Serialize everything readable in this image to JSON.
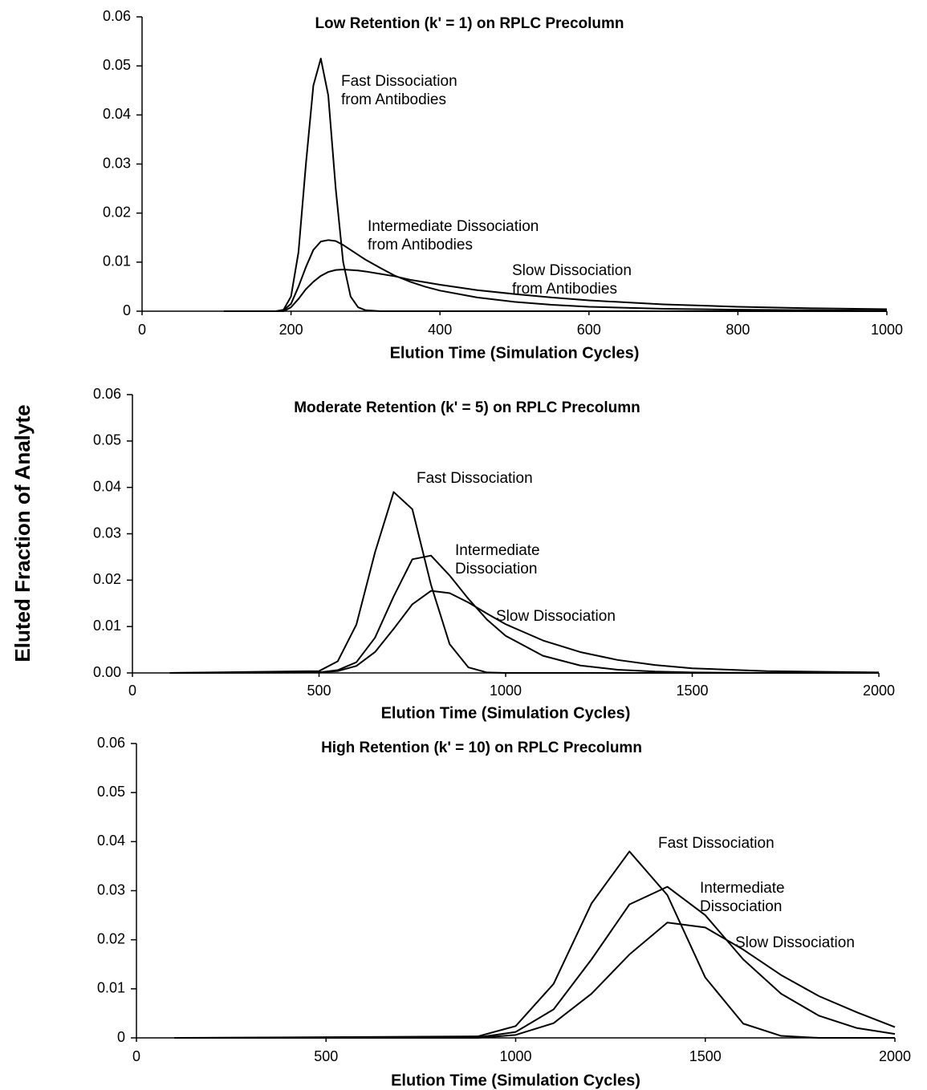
{
  "chart_data": [
    {
      "type": "line",
      "title": "Low Retention (k' = 1) on RPLC Precolumn",
      "xlabel": "Elution Time (Simulation Cycles)",
      "xlim": [
        0,
        1000
      ],
      "xticks": [
        0,
        200,
        400,
        600,
        800,
        1000
      ],
      "ylim": [
        0,
        0.06
      ],
      "yticks": [
        0,
        0.01,
        0.02,
        0.03,
        0.04,
        0.05,
        0.06
      ],
      "x": [
        110,
        180,
        190,
        200,
        210,
        220,
        230,
        240,
        250,
        260,
        270,
        280,
        290,
        300,
        320,
        340,
        360,
        380,
        400,
        450,
        500,
        550,
        600,
        700,
        800,
        900,
        1000
      ],
      "series": [
        {
          "label": [
            "Fast Dissociation",
            "from Antibodies"
          ],
          "color": "#000000",
          "values": [
            0,
            0,
            0.0003,
            0.003,
            0.012,
            0.03,
            0.046,
            0.0515,
            0.044,
            0.025,
            0.01,
            0.003,
            0.0008,
            0.0002,
            0,
            0,
            0,
            0,
            0,
            0,
            0,
            0,
            0,
            0,
            0,
            0,
            0
          ]
        },
        {
          "label": [
            "Intermediate Dissociation",
            "from Antibodies"
          ],
          "color": "#000000",
          "values": [
            0,
            0,
            0.0002,
            0.0015,
            0.005,
            0.009,
            0.0125,
            0.0142,
            0.0145,
            0.0143,
            0.0135,
            0.0125,
            0.0115,
            0.0105,
            0.0088,
            0.0072,
            0.006,
            0.005,
            0.0042,
            0.0028,
            0.0019,
            0.0013,
            0.0009,
            0.0005,
            0.0003,
            0.0002,
            0.0001
          ]
        },
        {
          "label": [
            "Slow Dissociation",
            "from Antibodies"
          ],
          "color": "#000000",
          "values": [
            0,
            0,
            0,
            0.0008,
            0.0025,
            0.0045,
            0.006,
            0.0072,
            0.008,
            0.0084,
            0.0085,
            0.0084,
            0.0083,
            0.0081,
            0.0076,
            0.0071,
            0.0064,
            0.0059,
            0.0054,
            0.0043,
            0.0035,
            0.0028,
            0.0022,
            0.0014,
            0.0009,
            0.0006,
            0.0004
          ]
        }
      ]
    },
    {
      "type": "line",
      "title": "Moderate Retention (k' = 5) on RPLC Precolumn",
      "xlabel": "Elution Time (Simulation Cycles)",
      "ylabel": "Eluted Fraction of Analyte",
      "xlim": [
        0,
        2000
      ],
      "xticks": [
        0,
        500,
        1000,
        1500,
        2000
      ],
      "ylim": [
        0,
        0.06
      ],
      "yticks": [
        {
          "value": 0,
          "label": "0.00"
        },
        {
          "value": 0.01,
          "label": "0.01"
        },
        {
          "value": 0.02,
          "label": "0.02"
        },
        {
          "value": 0.03,
          "label": "0.03"
        },
        {
          "value": 0.04,
          "label": "0.04"
        },
        {
          "value": 0.05,
          "label": "0.05"
        },
        {
          "value": 0.06,
          "label": "0.06"
        }
      ],
      "x": [
        100,
        500,
        550,
        600,
        650,
        700,
        750,
        800,
        850,
        900,
        950,
        1000,
        1100,
        1200,
        1300,
        1400,
        1500,
        1700,
        2000
      ],
      "series": [
        {
          "label": [
            "Fast Dissociation"
          ],
          "color": "#000000",
          "values": [
            0,
            0.0004,
            0.0025,
            0.0104,
            0.026,
            0.039,
            0.0353,
            0.019,
            0.0062,
            0.0012,
            0.0001,
            0,
            0,
            0,
            0,
            0,
            0,
            0,
            0
          ]
        },
        {
          "label": [
            "Intermediate",
            "Dissociation"
          ],
          "color": "#000000",
          "values": [
            0,
            0.0001,
            0.0006,
            0.0023,
            0.0076,
            0.0165,
            0.0245,
            0.0253,
            0.021,
            0.016,
            0.0115,
            0.008,
            0.0037,
            0.0016,
            0.0007,
            0.0003,
            0.0001,
            0,
            0
          ]
        },
        {
          "label": [
            "Slow Dissociation"
          ],
          "color": "#000000",
          "values": [
            0,
            0.0001,
            0.0004,
            0.0015,
            0.0045,
            0.0095,
            0.0148,
            0.0177,
            0.0172,
            0.0152,
            0.0128,
            0.0105,
            0.007,
            0.0045,
            0.0028,
            0.0017,
            0.001,
            0.0004,
            0.0001
          ]
        }
      ]
    },
    {
      "type": "line",
      "title": "High Retention (k' = 10) on RPLC Precolumn",
      "xlabel": "Elution Time (Simulation Cycles)",
      "xlim": [
        0,
        2000
      ],
      "xticks": [
        0,
        500,
        1000,
        1500,
        2000
      ],
      "ylim": [
        0,
        0.06
      ],
      "yticks": [
        0,
        0.01,
        0.02,
        0.03,
        0.04,
        0.05,
        0.06
      ],
      "x": [
        100,
        900,
        1000,
        1100,
        1200,
        1300,
        1400,
        1500,
        1600,
        1700,
        1800,
        1900,
        2000
      ],
      "series": [
        {
          "label": [
            "Fast Dissociation"
          ],
          "color": "#000000",
          "values": [
            0,
            0.0003,
            0.0024,
            0.011,
            0.0274,
            0.038,
            0.0291,
            0.0123,
            0.0029,
            0.0004,
            0,
            0,
            0
          ]
        },
        {
          "label": [
            "Intermediate",
            "Dissociation"
          ],
          "color": "#000000",
          "values": [
            0,
            0.0001,
            0.0012,
            0.0058,
            0.016,
            0.0272,
            0.0308,
            0.025,
            0.016,
            0.009,
            0.0045,
            0.002,
            0.0008
          ]
        },
        {
          "label": [
            "Slow Dissociation"
          ],
          "color": "#000000",
          "values": [
            0,
            0,
            0.0006,
            0.003,
            0.009,
            0.017,
            0.0235,
            0.0225,
            0.018,
            0.0128,
            0.0085,
            0.0052,
            0.0022
          ]
        }
      ]
    }
  ]
}
